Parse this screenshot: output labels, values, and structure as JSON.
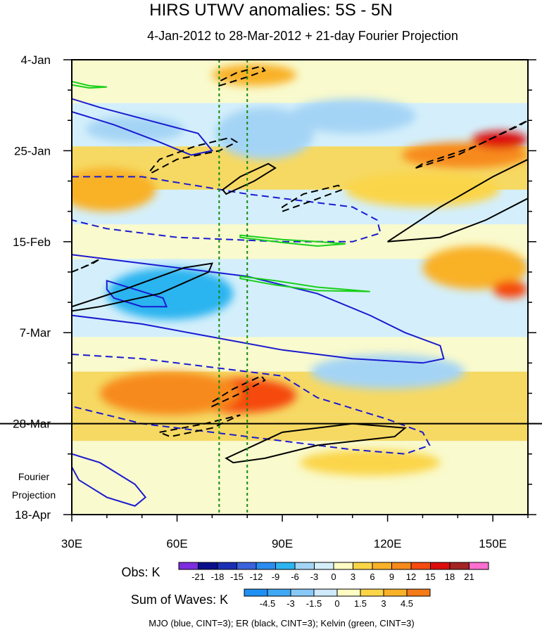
{
  "chart_data": {
    "type": "heatmap",
    "title": "HIRS UTWV anomalies: 5S - 5N",
    "subtitle": "4-Jan-2012 to 28-Mar-2012 + 21-day Fourier Projection",
    "x_axis": {
      "unit": "degrees longitude",
      "range": [
        30,
        160
      ],
      "ticks": [
        30,
        60,
        90,
        120,
        150
      ],
      "tick_labels": [
        "30E",
        "60E",
        "90E",
        "120E",
        "150E"
      ]
    },
    "y_axis": {
      "unit": "day index from 4-Jan-2012",
      "range": [
        0,
        105
      ],
      "ticks": [
        0,
        21,
        42,
        63,
        84,
        105
      ],
      "tick_labels": [
        "4-Jan",
        "25-Jan",
        "15-Feb",
        "7-Mar",
        "28-Mar",
        "18-Apr"
      ]
    },
    "projection_label": [
      "Fourier",
      "Projection"
    ],
    "observation_end_day": 84,
    "reference_longitudes": [
      72,
      80
    ],
    "obs_colorbar": {
      "label": "Obs: K",
      "levels": [
        "-21",
        "-18",
        "-15",
        "-12",
        "-9",
        "-6",
        "-3",
        "0",
        "3",
        "6",
        "9",
        "12",
        "15",
        "18",
        "21"
      ],
      "colors": [
        "#7d2ee0",
        "#0a0f8c",
        "#1a2eb4",
        "#3a62dc",
        "#2a8cf0",
        "#2cb4f0",
        "#a4d4f5",
        "#d4eefa",
        "#fffcc4",
        "#fbd548",
        "#f9b128",
        "#f78a1a",
        "#f54a10",
        "#dc0c0c",
        "#a42323",
        "#ff6fcf"
      ]
    },
    "waves_colorbar": {
      "label": "Sum of Waves: K",
      "levels": [
        "-4.5",
        "-3",
        "-1.5",
        "0",
        "1.5",
        "3",
        "4.5"
      ],
      "colors": [
        "#1e90f5",
        "#3fa9f5",
        "#88c9f8",
        "#cfeafb",
        "#fffcc4",
        "#fbd548",
        "#f9b128",
        "#f57a18"
      ]
    },
    "contour_legend": "MJO (blue, CINT=3); ER (black, CINT=3); Kelvin (green, CINT=3)",
    "field_bands": [
      {
        "day_start": 0,
        "day_end": 4,
        "value": 1
      },
      {
        "day_start": 4,
        "day_end": 10,
        "value": 2
      },
      {
        "day_start": 10,
        "day_end": 20,
        "value": -2
      },
      {
        "day_start": 20,
        "day_end": 30,
        "value": 3
      },
      {
        "day_start": 30,
        "day_end": 38,
        "value": -1
      },
      {
        "day_start": 38,
        "day_end": 46,
        "value": 1
      },
      {
        "day_start": 46,
        "day_end": 58,
        "value": -3
      },
      {
        "day_start": 58,
        "day_end": 64,
        "value": -1
      },
      {
        "day_start": 64,
        "day_end": 72,
        "value": 1
      },
      {
        "day_start": 72,
        "day_end": 82,
        "value": 5
      },
      {
        "day_start": 82,
        "day_end": 88,
        "value": 3
      },
      {
        "day_start": 88,
        "day_end": 105,
        "value": 1
      }
    ],
    "field_blobs": [
      {
        "lon": 32,
        "day": 29.5,
        "rlon": 6,
        "rday": 3,
        "value": 14
      },
      {
        "lon": 40,
        "day": 30,
        "rlon": 14,
        "rday": 5,
        "value": 8
      },
      {
        "lon": 82,
        "day": 3.5,
        "rlon": 12,
        "rday": 2.5,
        "value": 8
      },
      {
        "lon": 142,
        "day": 22,
        "rlon": 18,
        "rday": 3,
        "value": 10
      },
      {
        "lon": 152,
        "day": 18.5,
        "rlon": 8,
        "rday": 2,
        "value": 15
      },
      {
        "lon": 130,
        "day": 30,
        "rlon": 22,
        "rday": 4,
        "value": 5
      },
      {
        "lon": 145,
        "day": 48,
        "rlon": 15,
        "rday": 5,
        "value": 8
      },
      {
        "lon": 155,
        "day": 53,
        "rlon": 5,
        "rday": 2,
        "value": 14
      },
      {
        "lon": 78,
        "day": 77.5,
        "rlon": 16,
        "rday": 4,
        "value": 14
      },
      {
        "lon": 58,
        "day": 77,
        "rlon": 20,
        "rday": 5,
        "value": 9
      },
      {
        "lon": 115,
        "day": 93,
        "rlon": 20,
        "rday": 3,
        "value": 3
      },
      {
        "lon": 85,
        "day": 17,
        "rlon": 14,
        "rday": 6,
        "value": -6
      },
      {
        "lon": 48,
        "day": 16,
        "rlon": 14,
        "rday": 3,
        "value": -6
      },
      {
        "lon": 58,
        "day": 54,
        "rlon": 18,
        "rday": 6,
        "value": -7
      },
      {
        "lon": 110,
        "day": 13,
        "rlon": 18,
        "rday": 4,
        "value": -4
      },
      {
        "lon": 120,
        "day": 72,
        "rlon": 22,
        "rday": 4,
        "value": -4
      }
    ],
    "contours": [
      {
        "wave": "MJO",
        "sign": "positive",
        "color": "#1a1ad0",
        "points": [
          [
            30,
            12
          ],
          [
            42,
            15
          ],
          [
            55,
            19
          ],
          [
            64,
            22
          ],
          [
            70,
            21
          ],
          [
            66,
            17
          ],
          [
            52,
            14
          ],
          [
            38,
            11
          ],
          [
            30,
            9
          ]
        ]
      },
      {
        "wave": "MJO",
        "sign": "negative",
        "color": "#1a1ad0",
        "points": [
          [
            30,
            27
          ],
          [
            50,
            27
          ],
          [
            80,
            31
          ],
          [
            100,
            33
          ],
          [
            110,
            34
          ],
          [
            117,
            37
          ],
          [
            118,
            40
          ],
          [
            110,
            42
          ],
          [
            90,
            42
          ],
          [
            60,
            41
          ],
          [
            40,
            39
          ],
          [
            30,
            37
          ]
        ]
      },
      {
        "wave": "MJO",
        "sign": "positive",
        "color": "#1a1ad0",
        "points": [
          [
            30,
            45
          ],
          [
            50,
            47
          ],
          [
            80,
            50
          ],
          [
            100,
            54
          ],
          [
            115,
            59
          ],
          [
            125,
            63
          ],
          [
            135,
            66
          ],
          [
            136,
            69
          ],
          [
            130,
            70
          ],
          [
            110,
            69
          ],
          [
            90,
            67
          ],
          [
            70,
            64
          ],
          [
            50,
            61
          ],
          [
            30,
            59
          ]
        ]
      },
      {
        "wave": "MJO",
        "sign": "positive",
        "color": "#1a1ad0",
        "points": [
          [
            40,
            51
          ],
          [
            48,
            53
          ],
          [
            56,
            55
          ],
          [
            57,
            57
          ],
          [
            50,
            57
          ],
          [
            42,
            55
          ],
          [
            40,
            53
          ]
        ]
      },
      {
        "wave": "MJO",
        "sign": "negative",
        "color": "#1a1ad0",
        "points": [
          [
            30,
            68
          ],
          [
            50,
            69
          ],
          [
            70,
            71
          ],
          [
            90,
            73
          ],
          [
            100,
            78
          ],
          [
            120,
            83
          ],
          [
            130,
            86
          ],
          [
            132,
            89
          ],
          [
            125,
            91
          ],
          [
            110,
            90
          ],
          [
            90,
            88
          ],
          [
            70,
            86
          ],
          [
            50,
            84
          ],
          [
            30,
            80
          ]
        ]
      },
      {
        "wave": "MJO",
        "sign": "positive",
        "color": "#1a1ad0",
        "points": [
          [
            30,
            91
          ],
          [
            38,
            93
          ],
          [
            48,
            98
          ],
          [
            51,
            101
          ],
          [
            48,
            103
          ],
          [
            40,
            101
          ],
          [
            32,
            97
          ],
          [
            30,
            94
          ]
        ]
      },
      {
        "wave": "ER",
        "sign": "negative",
        "color": "#000000",
        "points": [
          [
            72,
            6
          ],
          [
            80,
            4
          ],
          [
            85,
            2.5
          ],
          [
            84,
            1.5
          ],
          [
            77,
            3
          ],
          [
            72,
            5
          ]
        ]
      },
      {
        "wave": "ER",
        "sign": "negative",
        "color": "#000000",
        "points": [
          [
            53,
            26
          ],
          [
            60,
            23
          ],
          [
            72,
            21
          ],
          [
            77,
            19
          ],
          [
            75,
            18
          ],
          [
            65,
            20
          ],
          [
            55,
            23
          ],
          [
            52,
            26
          ]
        ]
      },
      {
        "wave": "ER",
        "sign": "positive",
        "color": "#000000",
        "points": [
          [
            74,
            31
          ],
          [
            82,
            28
          ],
          [
            88,
            25
          ],
          [
            86,
            24
          ],
          [
            78,
            27
          ],
          [
            73,
            30
          ]
        ]
      },
      {
        "wave": "ER",
        "sign": "negative",
        "color": "#000000",
        "points": [
          [
            90,
            35
          ],
          [
            97,
            33
          ],
          [
            107,
            30
          ],
          [
            106,
            29
          ],
          [
            96,
            31
          ],
          [
            90,
            34
          ]
        ]
      },
      {
        "wave": "ER",
        "sign": "negative",
        "color": "#000000",
        "points": [
          [
            128,
            25
          ],
          [
            140,
            22
          ],
          [
            155,
            16
          ],
          [
            160,
            14
          ],
          [
            158,
            15
          ],
          [
            145,
            20
          ],
          [
            130,
            24
          ]
        ]
      },
      {
        "wave": "ER",
        "sign": "positive",
        "color": "#000000",
        "points": [
          [
            120,
            42
          ],
          [
            135,
            34
          ],
          [
            150,
            27
          ],
          [
            160,
            23
          ],
          [
            160,
            32
          ],
          [
            148,
            37
          ],
          [
            135,
            41
          ],
          [
            120,
            42
          ]
        ]
      },
      {
        "wave": "ER",
        "sign": "positive",
        "color": "#000000",
        "points": [
          [
            30,
            57
          ],
          [
            45,
            53
          ],
          [
            62,
            48
          ],
          [
            70,
            47
          ],
          [
            69,
            49
          ],
          [
            55,
            54
          ],
          [
            38,
            57
          ],
          [
            30,
            58
          ]
        ]
      },
      {
        "wave": "ER",
        "sign": "negative",
        "color": "#000000",
        "points": [
          [
            30,
            49
          ],
          [
            36,
            47
          ],
          [
            38,
            46
          ],
          [
            33,
            48
          ],
          [
            30,
            49
          ]
        ]
      },
      {
        "wave": "ER",
        "sign": "negative",
        "color": "#000000",
        "points": [
          [
            70,
            80
          ],
          [
            78,
            77
          ],
          [
            85,
            74
          ],
          [
            84,
            73
          ],
          [
            76,
            76
          ],
          [
            70,
            79
          ]
        ]
      },
      {
        "wave": "ER",
        "sign": "negative",
        "color": "#000000",
        "points": [
          [
            55,
            86
          ],
          [
            68,
            84
          ],
          [
            78,
            82
          ],
          [
            70,
            85
          ],
          [
            58,
            87
          ]
        ]
      },
      {
        "wave": "ER",
        "sign": "positive",
        "color": "#000000",
        "points": [
          [
            74,
            92
          ],
          [
            90,
            86
          ],
          [
            110,
            84
          ],
          [
            125,
            85
          ],
          [
            122,
            87
          ],
          [
            100,
            89
          ],
          [
            85,
            92
          ],
          [
            76,
            93
          ]
        ]
      },
      {
        "wave": "Kelvin",
        "sign": "positive",
        "color": "#1ad01a",
        "points": [
          [
            30,
            5
          ],
          [
            35,
            6
          ],
          [
            40,
            6.3
          ],
          [
            35,
            6.5
          ],
          [
            30,
            5.8
          ]
        ]
      },
      {
        "wave": "Kelvin",
        "sign": "positive",
        "color": "#1ad01a",
        "points": [
          [
            78,
            40.5
          ],
          [
            90,
            41.5
          ],
          [
            100,
            42
          ],
          [
            108,
            42.5
          ],
          [
            100,
            43
          ],
          [
            90,
            42.2
          ],
          [
            78,
            41
          ]
        ]
      },
      {
        "wave": "Kelvin",
        "sign": "positive",
        "color": "#1ad01a",
        "points": [
          [
            78,
            50
          ],
          [
            88,
            51
          ],
          [
            100,
            52.5
          ],
          [
            115,
            53.5
          ],
          [
            100,
            53.3
          ],
          [
            88,
            52
          ],
          [
            78,
            50.5
          ]
        ]
      }
    ]
  }
}
